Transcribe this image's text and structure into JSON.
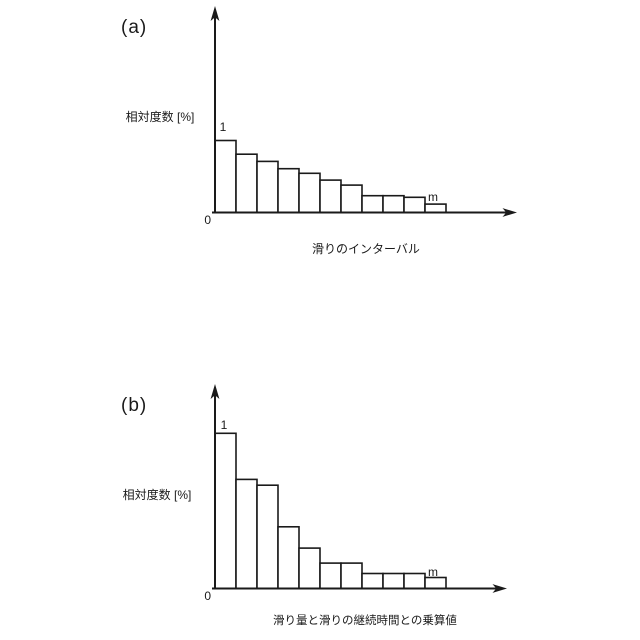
{
  "page": {
    "background": "#ffffff",
    "ink": "#1a1a1a"
  },
  "charts": [
    {
      "panel_label": "(a)",
      "ylabel": "相対度数 [%]",
      "xlabel": "滑りのインターバル",
      "origin_label": "0",
      "first_bin_label": "1",
      "last_bin_label": "m",
      "chart_data": {
        "type": "bar",
        "title": "",
        "xlabel": "滑りのインターバル",
        "ylabel": "相対度数 [%]",
        "categories": [
          "1",
          "2",
          "3",
          "4",
          "5",
          "6",
          "7",
          "8",
          "9",
          "10",
          "m"
        ],
        "values": [
          18.9,
          15.3,
          13.4,
          11.5,
          10.3,
          8.5,
          7.2,
          4.4,
          4.4,
          4.0,
          2.2
        ],
        "ylim": [
          0,
          25
        ],
        "grid": false,
        "legend": false,
        "bar_fill": "#ffffff",
        "bar_stroke": "#1a1a1a"
      }
    },
    {
      "panel_label": "(b)",
      "ylabel": "相対度数 [%]",
      "xlabel": "滑り量と滑りの継続時間との乗算値",
      "origin_label": "0",
      "first_bin_label": "1",
      "last_bin_label": "m",
      "chart_data": {
        "type": "bar",
        "title": "",
        "xlabel": "滑り量と滑りの継続時間との乗算値",
        "ylabel": "相対度数 [%]",
        "categories": [
          "1",
          "2",
          "3",
          "4",
          "5",
          "6",
          "7",
          "8",
          "9",
          "10",
          "m"
        ],
        "values": [
          26.9,
          18.9,
          17.9,
          10.7,
          7.0,
          4.4,
          4.4,
          2.6,
          2.6,
          2.6,
          1.9
        ],
        "ylim": [
          0,
          30
        ],
        "grid": false,
        "legend": false,
        "bar_fill": "#ffffff",
        "bar_stroke": "#1a1a1a"
      }
    }
  ]
}
